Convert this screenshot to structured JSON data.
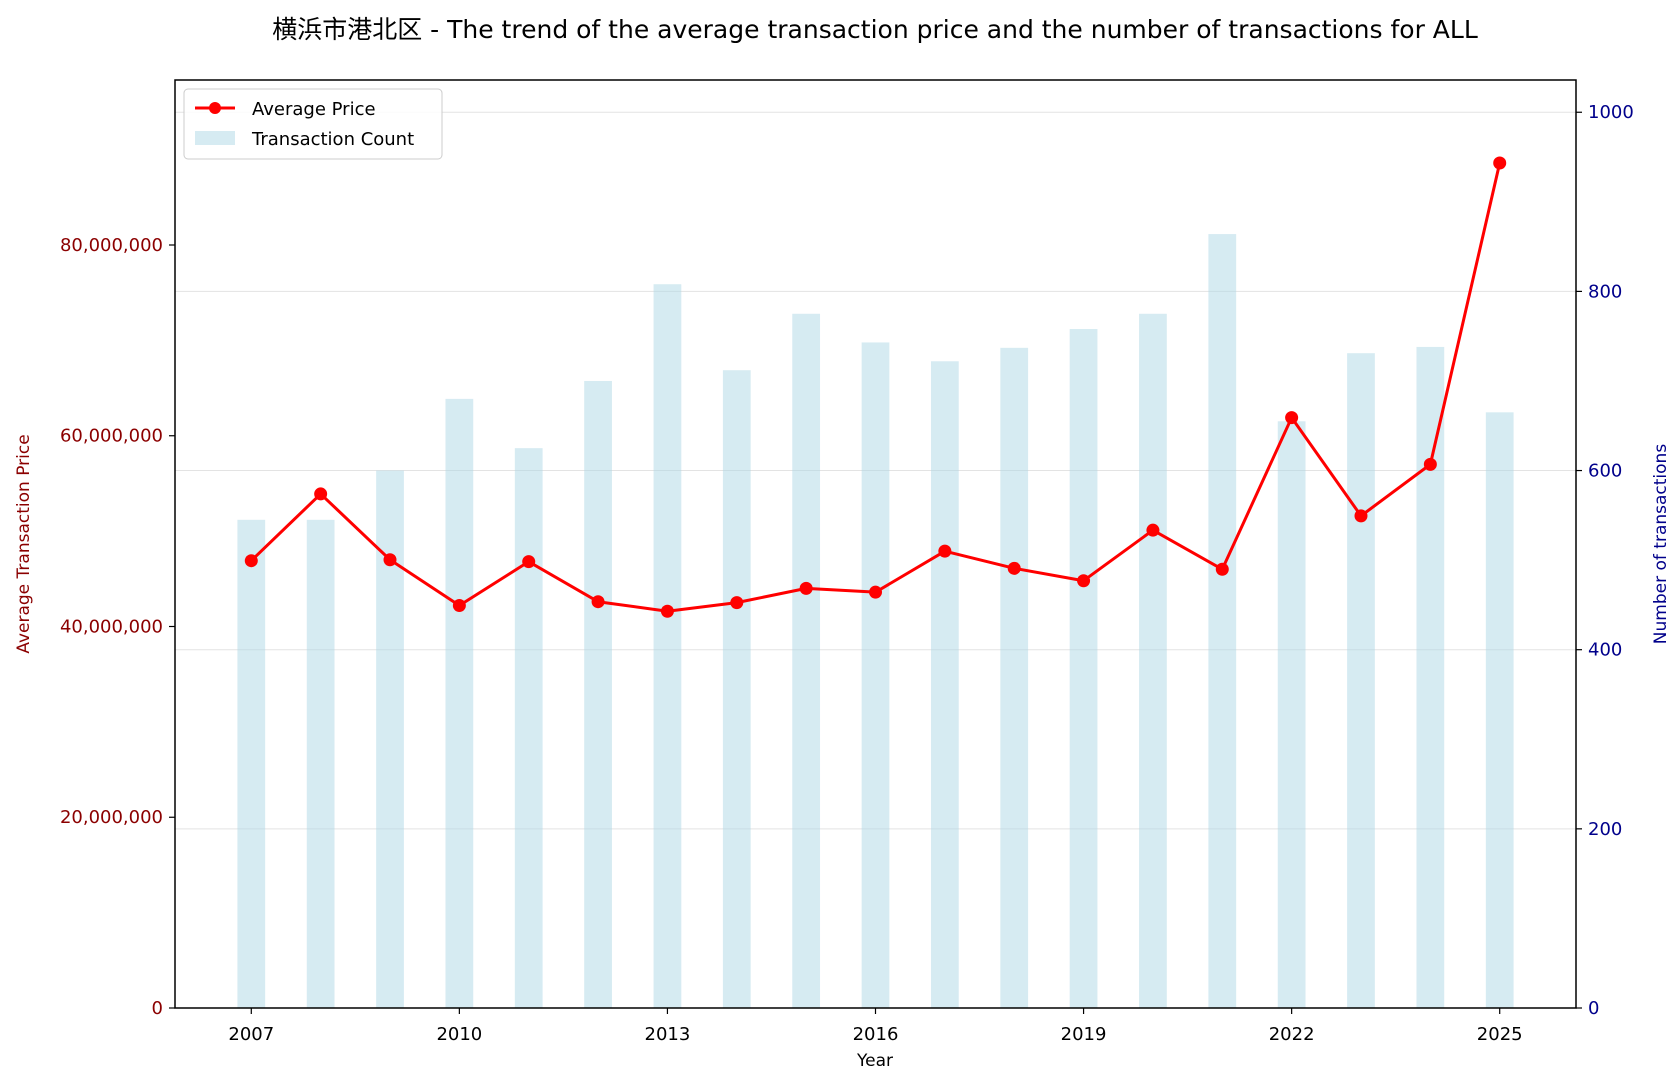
{
  "chart_data": {
    "type": "bar+line",
    "title": "横浜市港北区 - The trend of the average transaction price and the number of transactions for ALL",
    "xlabel": "Year",
    "ylabel_left": "Average Transaction Price",
    "ylabel_right": "Number of transactions",
    "x_ticks": [
      "2007",
      "2010",
      "2013",
      "2016",
      "2019",
      "2022",
      "2025"
    ],
    "y_left_ticks": [
      "0",
      "20,000,000",
      "40,000,000",
      "60,000,000",
      "80,000,000"
    ],
    "y_right_ticks": [
      "0",
      "200",
      "400",
      "600",
      "800",
      "1000"
    ],
    "years": [
      2007,
      2008,
      2009,
      2010,
      2011,
      2012,
      2013,
      2014,
      2015,
      2016,
      2017,
      2018,
      2019,
      2020,
      2021,
      2022,
      2023,
      2024,
      2025
    ],
    "xlim": [
      2005.9,
      2026.1
    ],
    "ylim_left": [
      0,
      97300000
    ],
    "ylim_right": [
      0,
      1036
    ],
    "grid": true,
    "legend_position": "top-left",
    "series": [
      {
        "name": "Average Price",
        "type": "line",
        "axis": "left",
        "color": "#ff0000",
        "values": [
          46900000,
          53900000,
          47000000,
          42200000,
          46800000,
          42600000,
          41600000,
          42500000,
          44000000,
          43600000,
          47900000,
          46100000,
          44800000,
          50100000,
          46000000,
          61900000,
          51600000,
          57000000,
          88600000
        ]
      },
      {
        "name": "Transaction Count",
        "type": "bar",
        "axis": "right",
        "color": "#add8e6",
        "values": [
          545,
          545,
          600,
          680,
          625,
          700,
          808,
          712,
          775,
          743,
          722,
          737,
          758,
          775,
          864,
          655,
          731,
          738,
          665
        ]
      }
    ]
  }
}
